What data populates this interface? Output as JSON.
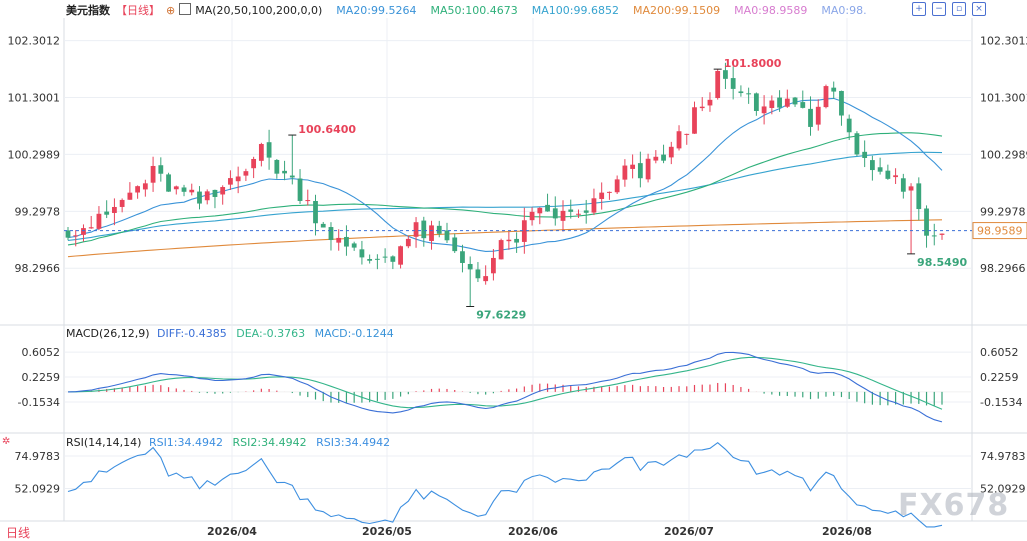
{
  "header": {
    "symbol": "美元指数",
    "period": "【日线】",
    "ma_label": "MA(20,50,100,200,0,0)",
    "ma_values": [
      {
        "text": "MA20:99.5264",
        "color": "#3a93d8"
      },
      {
        "text": "MA50:100.4673",
        "color": "#2fb07a"
      },
      {
        "text": "MA100:99.6852",
        "color": "#36a3cf"
      },
      {
        "text": "MA200:99.1509",
        "color": "#e08a3c"
      },
      {
        "text": "MA0:98.9589",
        "color": "#d77ccf"
      },
      {
        "text": "MA0:98.",
        "color": "#8aa6e8"
      }
    ],
    "icons": [
      "add-icon",
      "minimize-icon",
      "restore-icon",
      "close-icon"
    ]
  },
  "macd_header": {
    "label": "MACD(26,12,9)",
    "diff": "DIFF:-0.4385",
    "dea": "DEA:-0.3763",
    "macd": "MACD:-0.1244"
  },
  "rsi_header": {
    "label": "RSI(14,14,14)",
    "rsi1": "RSI1:34.4942",
    "rsi2": "RSI2:34.4942",
    "rsi3": "RSI3:34.4942"
  },
  "footer": {
    "period_label": "日线"
  },
  "watermark": "FX678",
  "colors": {
    "up": "#e8435a",
    "down": "#3aa57b",
    "grid": "#eceff4"
  },
  "chart_data": [
    {
      "type": "candlestick",
      "title": "美元指数",
      "ylim": [
        97.35,
        102.7
      ],
      "y_ticks": [
        102.3012,
        101.3001,
        100.2989,
        99.2978,
        98.2966
      ],
      "x_ticks": [
        "2026/04",
        "2026/05",
        "2026/06",
        "2026/07",
        "2026/08"
      ],
      "last_price": "98.9589",
      "annotations": [
        {
          "text": "100.6400",
          "type": "high"
        },
        {
          "text": "97.6229",
          "type": "low"
        },
        {
          "text": "101.8000",
          "type": "high"
        },
        {
          "text": "98.5490",
          "type": "low"
        }
      ],
      "series": [
        {
          "name": "MA20",
          "color": "#3a93d8"
        },
        {
          "name": "MA50",
          "color": "#2fb07a"
        },
        {
          "name": "MA100",
          "color": "#36a3cf"
        },
        {
          "name": "MA200",
          "color": "#e08a3c"
        }
      ]
    },
    {
      "type": "bar",
      "title": "MACD(26,12,9)",
      "ylim": [
        -0.58,
        0.82
      ],
      "y_ticks": [
        0.6052,
        0.2259,
        -0.1534
      ],
      "series": [
        {
          "name": "DIFF",
          "color": "#3a6fd6"
        },
        {
          "name": "DEA",
          "color": "#34b58a"
        },
        {
          "name": "MACD"
        }
      ]
    },
    {
      "type": "line",
      "title": "RSI(14,14,14)",
      "ylim": [
        30,
        82
      ],
      "y_ticks": [
        74.9783,
        52.0929
      ],
      "series": [
        {
          "name": "RSI1",
          "color": "#3d8fe0"
        },
        {
          "name": "RSI2",
          "color": "#2fb07a"
        },
        {
          "name": "RSI3",
          "color": "#3d8fe0"
        }
      ]
    }
  ]
}
